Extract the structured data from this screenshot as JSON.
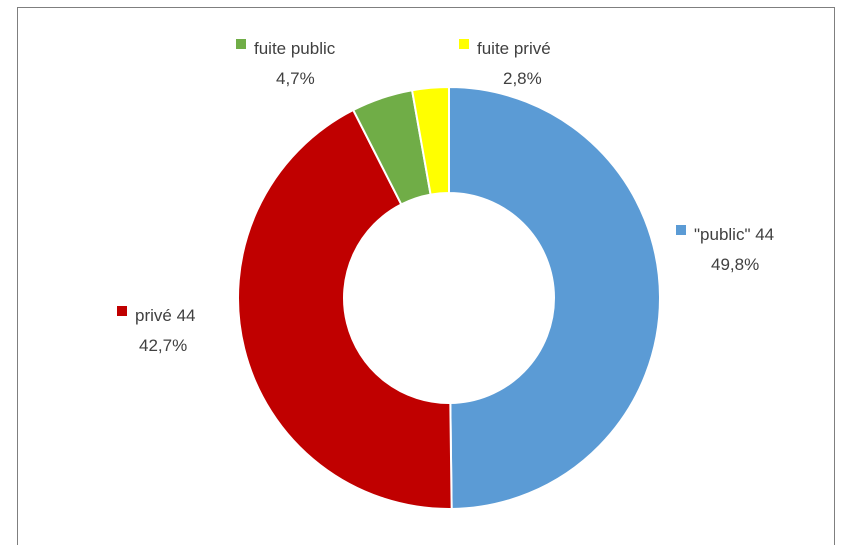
{
  "chart_data": {
    "type": "pie",
    "variant": "donut",
    "title": "",
    "start": "12 o'clock, clockwise",
    "slices": [
      {
        "name": "\"public\" 44",
        "percent_label": "49,8%",
        "value": 49.8,
        "color": "#5b9bd5"
      },
      {
        "name": "privé 44",
        "percent_label": "42,7%",
        "value": 42.7,
        "color": "#c00000"
      },
      {
        "name": "fuite public",
        "percent_label": "4,7%",
        "value": 4.7,
        "color": "#70ad47"
      },
      {
        "name": "fuite privé",
        "percent_label": "2,8%",
        "value": 2.8,
        "color": "#ffff00"
      }
    ]
  }
}
